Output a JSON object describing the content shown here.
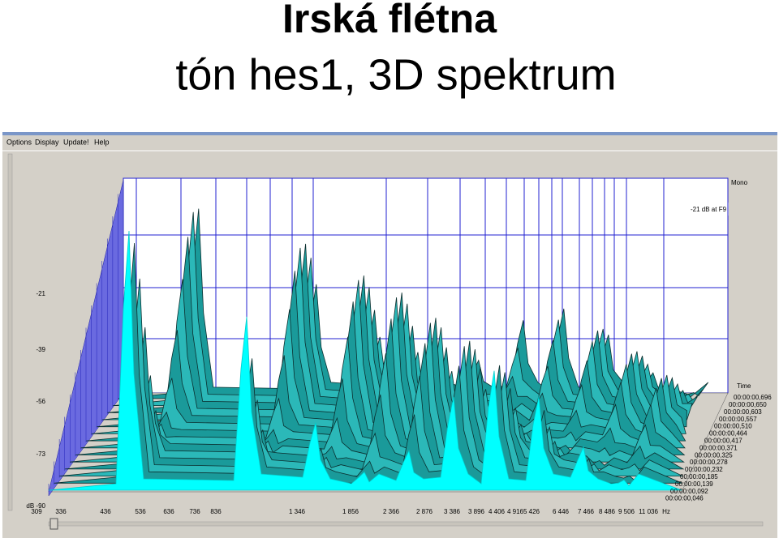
{
  "slide": {
    "title": "Irská flétna",
    "subtitle": "tón hes1, 3D spektrum"
  },
  "window": {
    "menu": [
      "Options",
      "Display",
      "Update!",
      "Help"
    ],
    "channel": "Mono",
    "readout": "-21 dB at F9",
    "y_axis_labels": [
      "-21",
      "-39",
      "-56",
      "-73",
      "dB -90"
    ],
    "x_axis_labels": [
      "309",
      "336",
      "436",
      "536",
      "636",
      "736",
      "836",
      "1 346",
      "1 856",
      "2 366",
      "2 876",
      "3 386",
      "3 896",
      "4 406",
      "4 916",
      "5 426",
      "6 446",
      "7 466",
      "8 486",
      "9 506",
      "11 036",
      "Hz"
    ],
    "time_title": "Time",
    "time_labels": [
      "00:00:00,696",
      "00:00:00,650",
      "00:00:00,603",
      "00:00:00,557",
      "00:00:00,510",
      "00:00:00,464",
      "00:00:00,417",
      "00:00:00,371",
      "00:00:00,325",
      "00:00:00,278",
      "00:00:00,232",
      "00:00:00,185",
      "00:00:00,139",
      "00:00:00,092",
      "00:00:00,046"
    ]
  }
}
